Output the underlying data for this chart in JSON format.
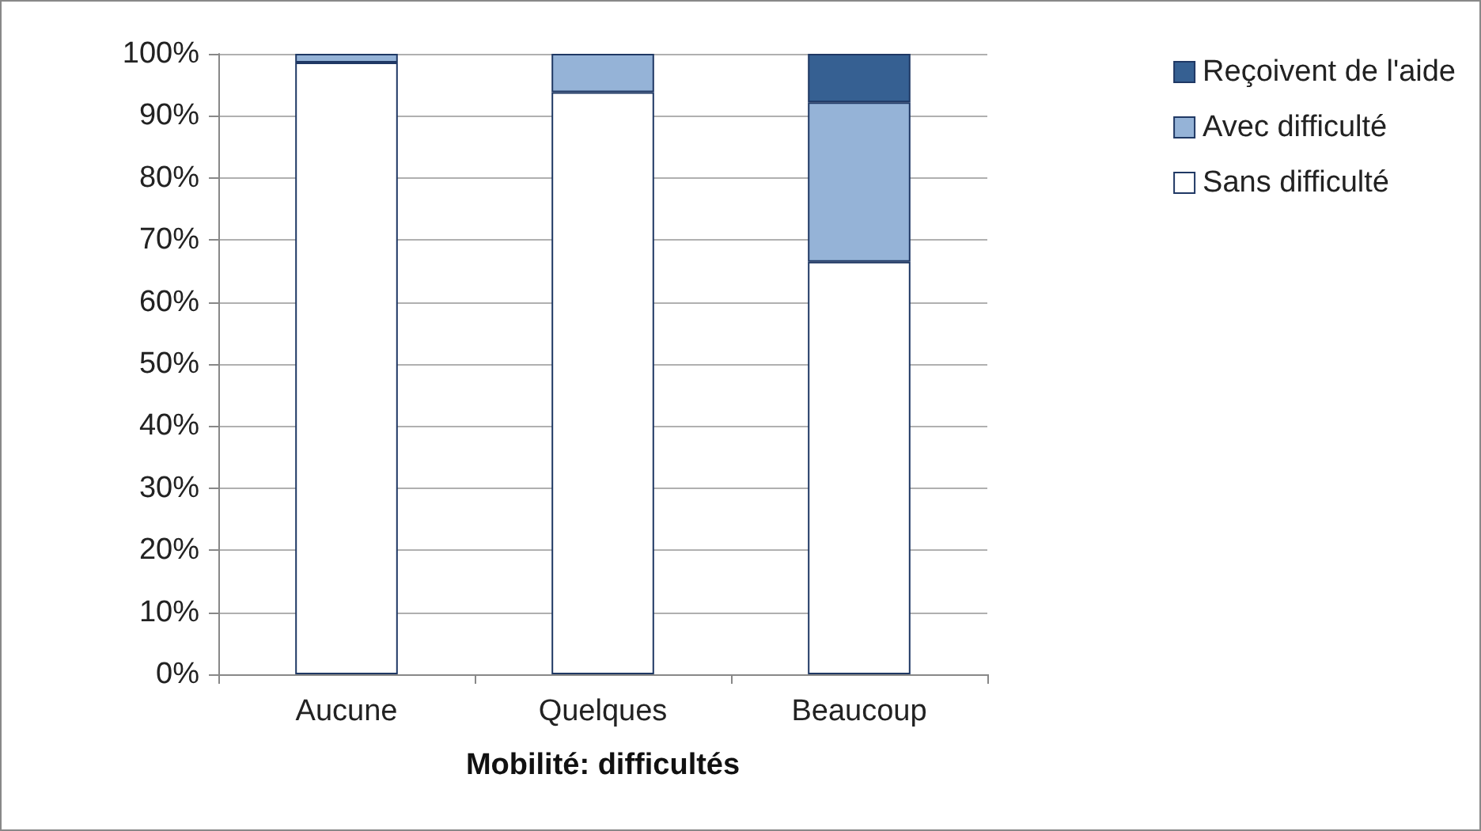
{
  "chart_data": {
    "type": "bar",
    "stacked": true,
    "xlabel": "Mobilité: difficultés",
    "categories": [
      "Aucune",
      "Quelques",
      "Beaucoup"
    ],
    "series": [
      {
        "name": "Sans difficulté",
        "color": "#ffffff",
        "values": [
          98.6,
          93.8,
          66.5
        ]
      },
      {
        "name": "Avec difficulté",
        "color": "#95b3d7",
        "values": [
          1.4,
          6.2,
          25.7
        ]
      },
      {
        "name": "Reçoivent de l'aide",
        "color": "#366092",
        "values": [
          0,
          0,
          7.8
        ]
      }
    ],
    "ylim": [
      0,
      100
    ],
    "yticks": [
      {
        "value": 0,
        "label": "0%"
      },
      {
        "value": 10,
        "label": "10%"
      },
      {
        "value": 20,
        "label": "20%"
      },
      {
        "value": 30,
        "label": "30%"
      },
      {
        "value": 40,
        "label": "40%"
      },
      {
        "value": 50,
        "label": "50%"
      },
      {
        "value": 60,
        "label": "60%"
      },
      {
        "value": 70,
        "label": "70%"
      },
      {
        "value": 80,
        "label": "80%"
      },
      {
        "value": 90,
        "label": "90%"
      },
      {
        "value": 100,
        "label": "100%"
      }
    ],
    "grid": "y",
    "legend": "right"
  }
}
